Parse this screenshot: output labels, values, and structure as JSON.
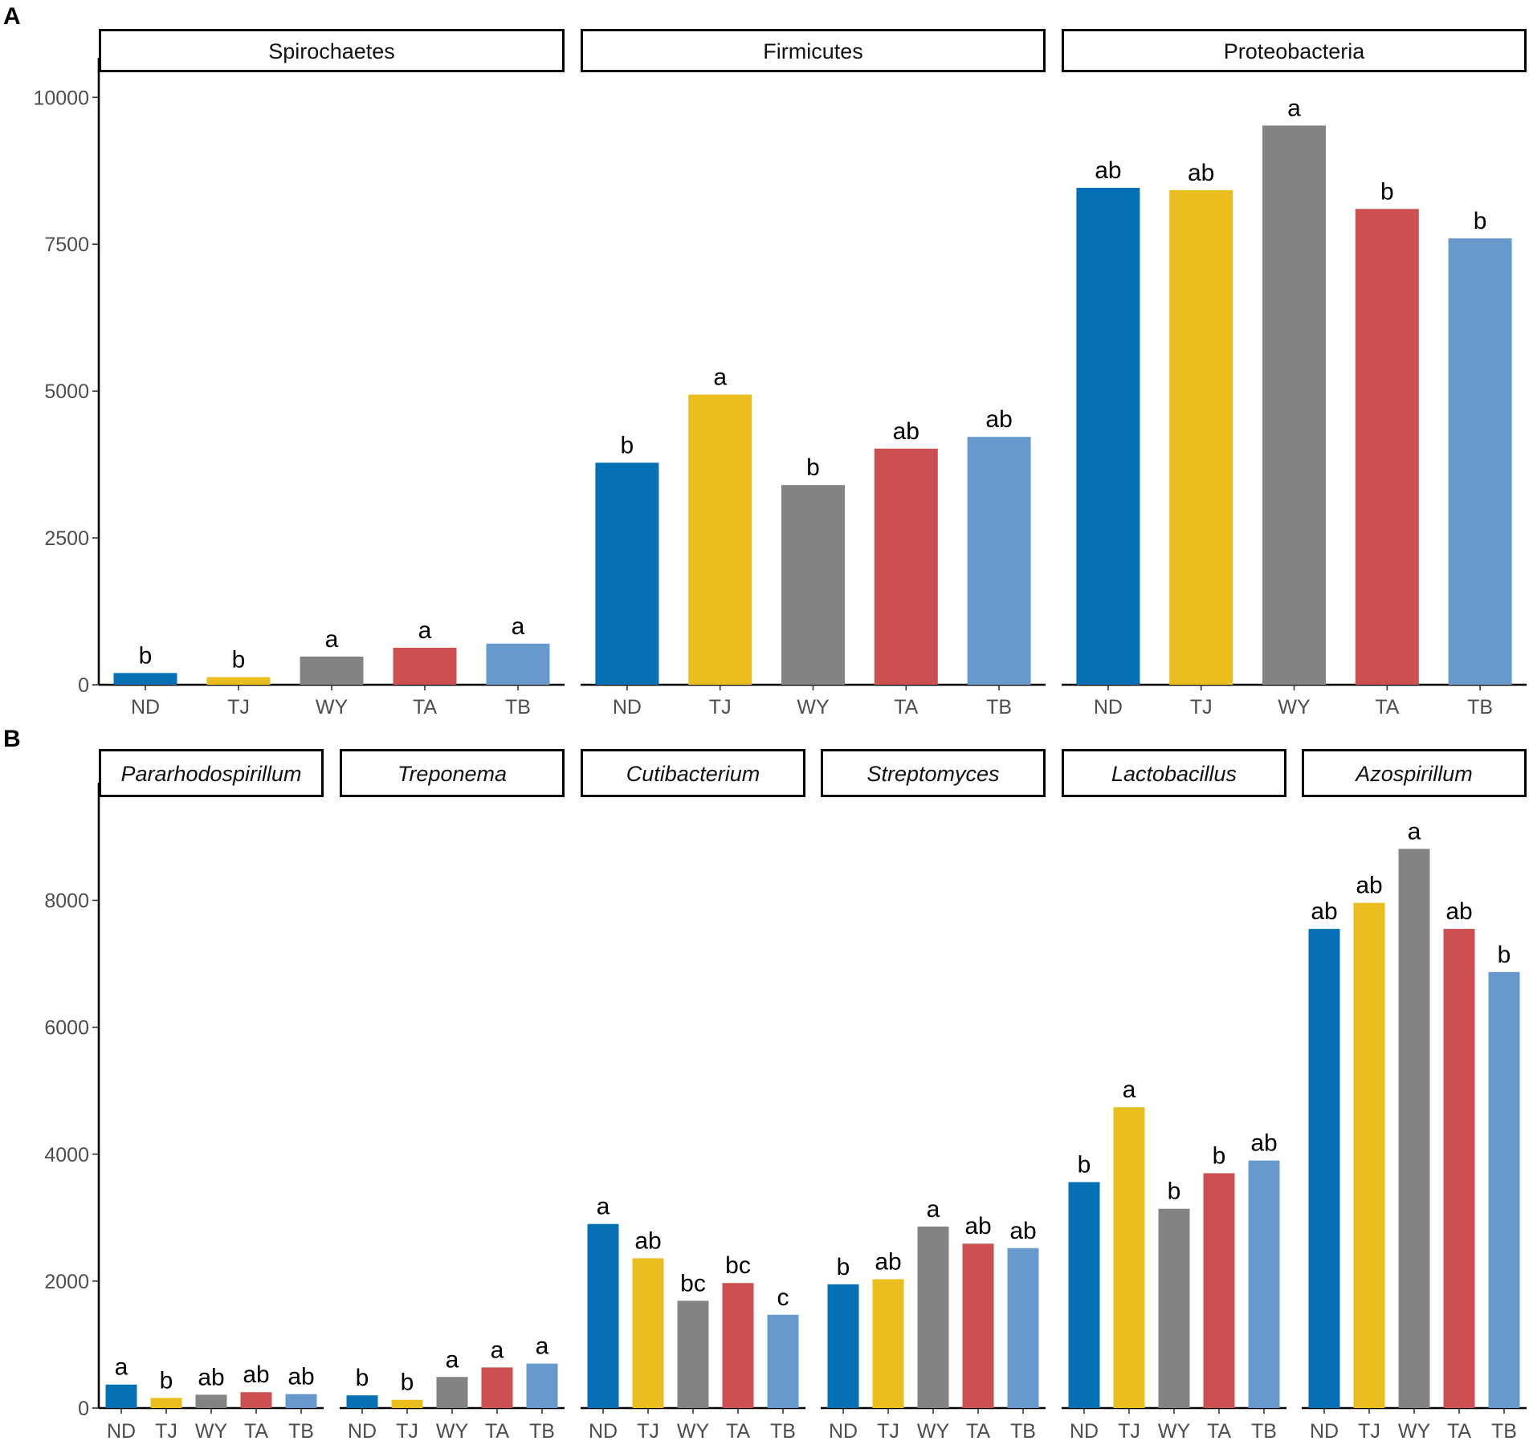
{
  "colors": {
    "ND": "#0570B4",
    "TJ": "#EABE1F",
    "WY": "#838385",
    "TA": "#CD5050",
    "TB": "#6899CC"
  },
  "chart_data": [
    {
      "panel_label": "A",
      "type": "bar",
      "categories": [
        "ND",
        "TJ",
        "WY",
        "TA",
        "TB"
      ],
      "ylim": [
        0,
        10400
      ],
      "yticks": [
        0,
        2500,
        5000,
        7500,
        10000
      ],
      "ytick_labels": [
        "0",
        "2500",
        "5000",
        "7500",
        "10000"
      ],
      "facets": [
        {
          "title": "Spirochaetes",
          "italic": false,
          "values": [
            200,
            130,
            480,
            630,
            700
          ],
          "labels": [
            "b",
            "b",
            "a",
            "a",
            "a"
          ]
        },
        {
          "title": "Firmicutes",
          "italic": false,
          "values": [
            3780,
            4940,
            3400,
            4020,
            4220
          ],
          "labels": [
            "b",
            "a",
            "b",
            "ab",
            "ab"
          ]
        },
        {
          "title": "Proteobacteria",
          "italic": false,
          "values": [
            8460,
            8420,
            9520,
            8100,
            7600
          ],
          "labels": [
            "ab",
            "ab",
            "a",
            "b",
            "b"
          ]
        }
      ]
    },
    {
      "panel_label": "B",
      "type": "bar",
      "categories": [
        "ND",
        "TJ",
        "WY",
        "TA",
        "TB"
      ],
      "ylim": [
        0,
        9600
      ],
      "yticks": [
        0,
        2000,
        4000,
        6000,
        8000
      ],
      "ytick_labels": [
        "0",
        "2000",
        "4000",
        "6000",
        "8000"
      ],
      "facets": [
        {
          "title": "Pararhodospirillum",
          "italic": true,
          "values": [
            370,
            160,
            210,
            250,
            220
          ],
          "labels": [
            "a",
            "b",
            "ab",
            "ab",
            "ab"
          ]
        },
        {
          "title": "Treponema",
          "italic": true,
          "values": [
            200,
            130,
            490,
            640,
            700
          ],
          "labels": [
            "b",
            "b",
            "a",
            "a",
            "a"
          ]
        },
        {
          "title": "Cutibacterium",
          "italic": true,
          "values": [
            2900,
            2360,
            1690,
            1970,
            1470
          ],
          "labels": [
            "a",
            "ab",
            "bc",
            "bc",
            "c"
          ]
        },
        {
          "title": "Streptomyces",
          "italic": true,
          "values": [
            1950,
            2030,
            2860,
            2590,
            2520
          ],
          "labels": [
            "b",
            "ab",
            "a",
            "ab",
            "ab"
          ]
        },
        {
          "title": "Lactobacillus",
          "italic": true,
          "values": [
            3560,
            4740,
            3140,
            3700,
            3900
          ],
          "labels": [
            "b",
            "a",
            "b",
            "b",
            "ab"
          ]
        },
        {
          "title": "Azospirillum",
          "italic": true,
          "values": [
            7550,
            7960,
            8810,
            7550,
            6870
          ],
          "labels": [
            "ab",
            "ab",
            "a",
            "ab",
            "b"
          ]
        }
      ]
    }
  ]
}
